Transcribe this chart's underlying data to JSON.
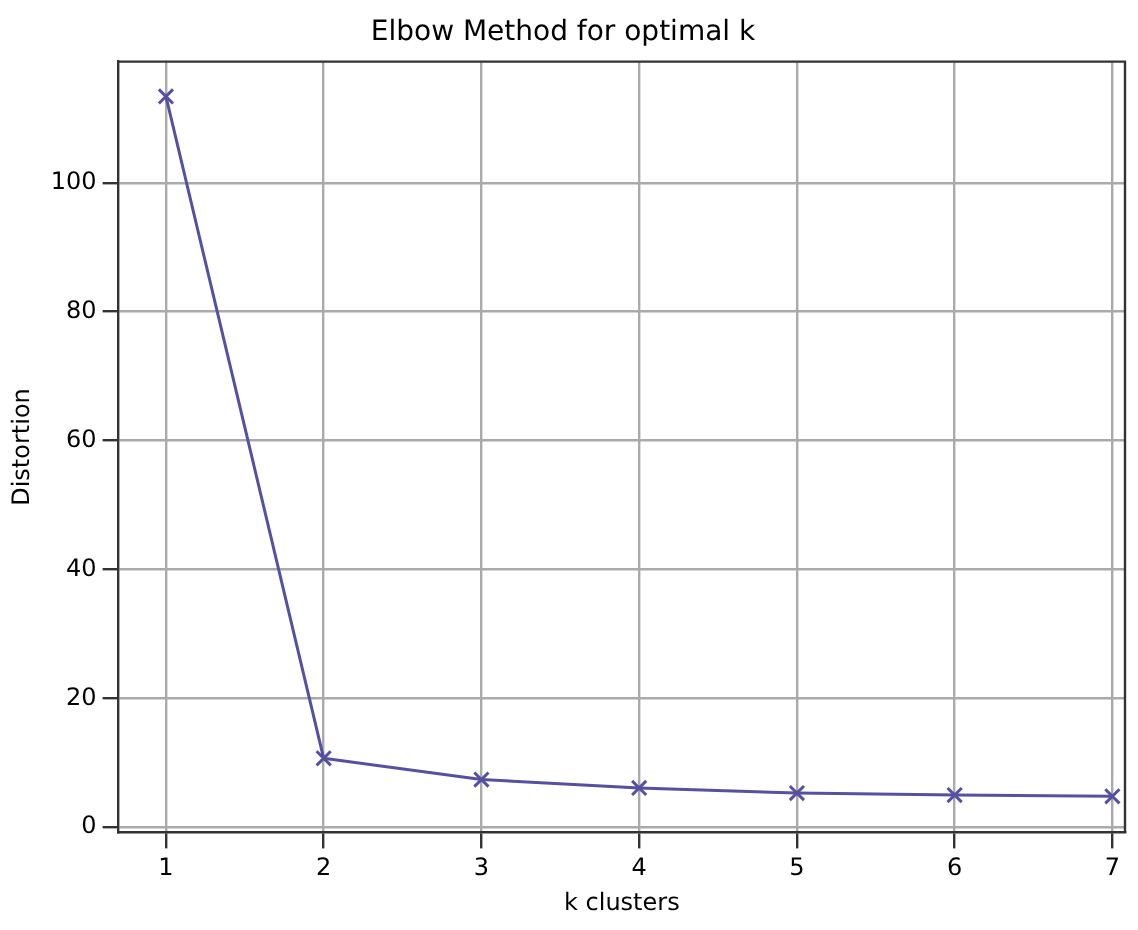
{
  "chart_data": {
    "type": "line",
    "title": "Elbow Method for optimal k",
    "xlabel": "k clusters",
    "ylabel": "Distortion",
    "x": [
      1,
      2,
      3,
      4,
      5,
      6,
      7
    ],
    "series": [
      {
        "color": "#55509f",
        "values": [
          113.4,
          10.7,
          7.4,
          6.1,
          5.3,
          5.0,
          4.8
        ]
      }
    ],
    "xlim": [
      0.7,
      7.08
    ],
    "xticks": [
      1,
      2,
      3,
      4,
      5,
      6,
      7
    ],
    "ylim": [
      -0.8,
      118.8
    ],
    "yticks": [
      0,
      20,
      40,
      60,
      80,
      100
    ],
    "grid": true,
    "legend": false,
    "marker": "cross",
    "line_style": "solid"
  }
}
